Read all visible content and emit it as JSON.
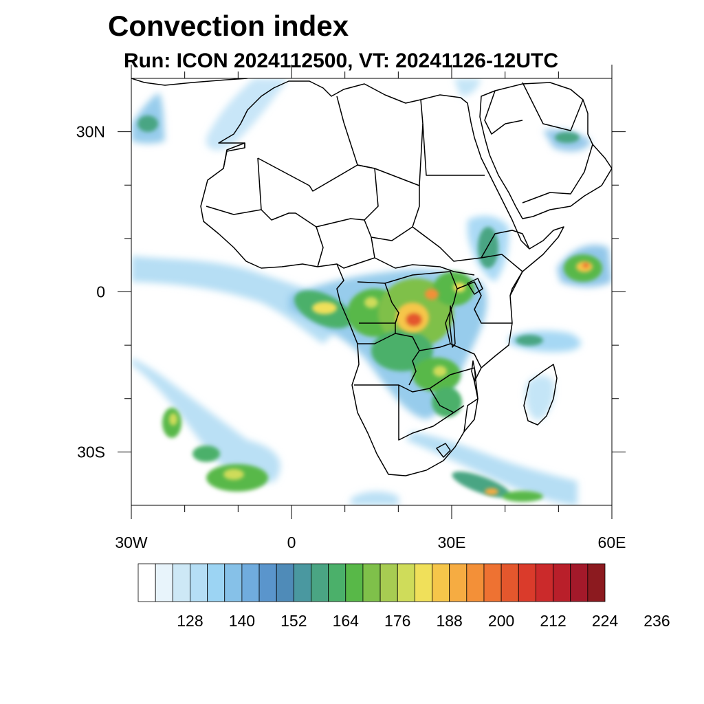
{
  "title": "Convection index",
  "subtitle": "Run: ICON 2024112500,  VT: 20241126-12UTC",
  "map": {
    "lon_range": [
      -30,
      60
    ],
    "lat_range": [
      -40,
      40
    ],
    "lon_tick_labels": [
      {
        "lon": -30,
        "label": "30W"
      },
      {
        "lon": 0,
        "label": "0"
      },
      {
        "lon": 30,
        "label": "30E"
      },
      {
        "lon": 60,
        "label": "60E"
      }
    ],
    "lat_tick_labels": [
      {
        "lat": 30,
        "label": "30N"
      },
      {
        "lat": 0,
        "label": "0"
      },
      {
        "lat": -30,
        "label": "30S"
      }
    ],
    "minor_lon_ticks": [
      -20,
      -10,
      10,
      20,
      40,
      50
    ],
    "minor_lat_ticks": [
      20,
      10,
      -10,
      -20
    ]
  },
  "colorbar": {
    "colors": [
      "#ffffff",
      "#e8f4fb",
      "#cde8f6",
      "#b5def5",
      "#9cd4f3",
      "#86c1e8",
      "#70acde",
      "#5a95cc",
      "#4f8bb8",
      "#4a98a0",
      "#4aa583",
      "#4bb06a",
      "#58b848",
      "#7fc04a",
      "#a7cc52",
      "#cfdc5a",
      "#f0e05a",
      "#f6c64a",
      "#f6ac42",
      "#f39038",
      "#ee7232",
      "#e4572d",
      "#da3b2b",
      "#cb2a2b",
      "#b91f2a",
      "#a3192a",
      "#8c1a1f"
    ],
    "tick_labels": [
      "128",
      "140",
      "152",
      "164",
      "176",
      "188",
      "200",
      "212",
      "224",
      "236"
    ]
  },
  "chart_data": {
    "type": "heatmap",
    "title": "Convection index",
    "subtitle": "Run: ICON 2024112500,  VT: 20241126-12UTC",
    "x_ticks": [
      "30W",
      "0",
      "30E",
      "60E"
    ],
    "y_ticks": [
      "30N",
      "0",
      "30S"
    ],
    "xlim": [
      -30,
      60
    ],
    "ylim": [
      -40,
      40
    ],
    "colorbar_ticks": [
      128,
      140,
      152,
      164,
      176,
      188,
      200,
      212,
      224,
      236
    ],
    "colorbar_step": 4,
    "cells": [
      {
        "lon": 24,
        "lat": -4,
        "value": 212
      },
      {
        "lon": 25,
        "lat": -5,
        "value": 208
      },
      {
        "lon": 26,
        "lat": 0,
        "value": 200
      },
      {
        "lon": 30,
        "lat": 0,
        "value": 196
      },
      {
        "lon": 32,
        "lat": 2,
        "value": 200
      },
      {
        "lon": 8,
        "lat": -2,
        "value": 192
      },
      {
        "lon": 10,
        "lat": -3,
        "value": 188
      },
      {
        "lon": 14,
        "lat": -1,
        "value": 184
      },
      {
        "lon": 12,
        "lat": 2,
        "value": 180
      },
      {
        "lon": 18,
        "lat": -2,
        "value": 184
      },
      {
        "lon": 20,
        "lat": 1,
        "value": 180
      },
      {
        "lon": 22,
        "lat": -7,
        "value": 184
      },
      {
        "lon": 28,
        "lat": -3,
        "value": 184
      },
      {
        "lon": 16,
        "lat": -9,
        "value": 172
      },
      {
        "lon": 24,
        "lat": -9,
        "value": 176
      },
      {
        "lon": 28,
        "lat": -15,
        "value": 184
      },
      {
        "lon": 30,
        "lat": -16,
        "value": 176
      },
      {
        "lon": 27,
        "lat": -20,
        "value": 176
      },
      {
        "lon": 31,
        "lat": -21,
        "value": 168
      },
      {
        "lon": 22,
        "lat": -13,
        "value": 164
      },
      {
        "lon": 34,
        "lat": 8,
        "value": 160
      },
      {
        "lon": 37,
        "lat": 6,
        "value": 160
      },
      {
        "lon": 53,
        "lat": 4,
        "value": 196
      },
      {
        "lon": 55,
        "lat": 5,
        "value": 180
      },
      {
        "lon": 51,
        "lat": 5,
        "value": 164
      },
      {
        "lon": 48,
        "lat": -9,
        "value": 160
      },
      {
        "lon": -25,
        "lat": -25,
        "value": 176
      },
      {
        "lon": -20,
        "lat": -31,
        "value": 172
      },
      {
        "lon": -16,
        "lat": -35,
        "value": 184
      },
      {
        "lon": -13,
        "lat": -36,
        "value": 176
      },
      {
        "lon": -11,
        "lat": -34,
        "value": 172
      },
      {
        "lon": 30,
        "lat": -34,
        "value": 168
      },
      {
        "lon": 36,
        "lat": -37,
        "value": 180
      },
      {
        "lon": 40,
        "lat": -38,
        "value": 176
      },
      {
        "lon": -27,
        "lat": 32,
        "value": 160
      },
      {
        "lon": -4,
        "lat": 37,
        "value": 156
      },
      {
        "lon": 50,
        "lat": 29,
        "value": 164
      },
      {
        "lon": -15,
        "lat": 5,
        "value": 148
      },
      {
        "lon": 0,
        "lat": 3,
        "value": 148
      },
      {
        "lon": 42,
        "lat": -9,
        "value": 148
      }
    ]
  }
}
